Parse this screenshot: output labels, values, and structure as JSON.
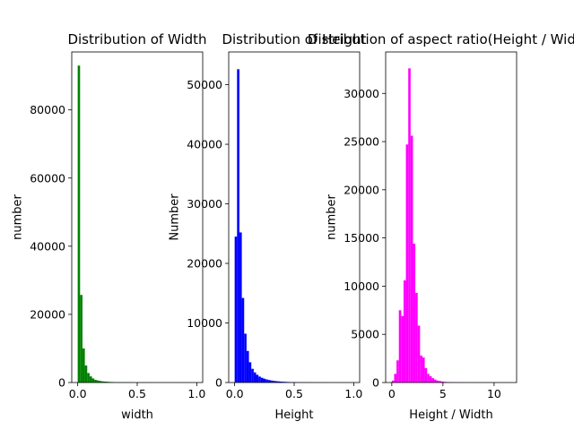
{
  "chart_data": [
    {
      "type": "bar",
      "title": "Distribution of Width",
      "xlabel": "width",
      "ylabel": "number",
      "color": "#008000",
      "xlim": [
        -0.05,
        1.05
      ],
      "ylim": [
        0,
        97000
      ],
      "xticks": [
        0.0,
        0.5,
        1.0
      ],
      "xtick_labels": [
        "0.0",
        "0.5",
        "1.0"
      ],
      "yticks": [
        0,
        20000,
        40000,
        60000,
        80000
      ],
      "ytick_labels": [
        "0",
        "20000",
        "40000",
        "60000",
        "80000"
      ],
      "bin_start": 0.0,
      "bin_width": 0.02,
      "values": [
        93000,
        25700,
        10000,
        5000,
        2800,
        1800,
        1200,
        800,
        600,
        450,
        350,
        280,
        220,
        180,
        150,
        120,
        100,
        80,
        70,
        60,
        55,
        50,
        45,
        40,
        35,
        30,
        28,
        25,
        22,
        20,
        18,
        16,
        15,
        14,
        13,
        12,
        11,
        10,
        9,
        8,
        7,
        6,
        5,
        5,
        4,
        4,
        3,
        3,
        2,
        2
      ]
    },
    {
      "type": "bar",
      "title": "Distribution of Height",
      "xlabel": "Height",
      "ylabel": "Number",
      "color": "#0000ff",
      "xlim": [
        -0.05,
        1.05
      ],
      "ylim": [
        0,
        55500
      ],
      "xticks": [
        0.0,
        0.5,
        1.0
      ],
      "xtick_labels": [
        "0.0",
        "0.5",
        "1.0"
      ],
      "yticks": [
        0,
        10000,
        20000,
        30000,
        40000,
        50000
      ],
      "ytick_labels": [
        "0",
        "10000",
        "20000",
        "30000",
        "40000",
        "50000"
      ],
      "bin_start": 0.0,
      "bin_width": 0.02,
      "values": [
        24500,
        52600,
        25200,
        14200,
        8200,
        5300,
        3400,
        2300,
        1700,
        1300,
        1000,
        800,
        650,
        520,
        420,
        340,
        280,
        230,
        190,
        160,
        130,
        110,
        90,
        75,
        60,
        50,
        42,
        35,
        30,
        25,
        21,
        18,
        15,
        13,
        11,
        9,
        8,
        7,
        6,
        5,
        4,
        4,
        3,
        3,
        2,
        2,
        2,
        1,
        1,
        1
      ]
    },
    {
      "type": "bar",
      "title": "Distribution of aspect ratio(Height / Width)",
      "xlabel": "Height / Width",
      "ylabel": "number",
      "color": "#ff00ff",
      "xlim": [
        -0.6,
        12.2
      ],
      "ylim": [
        0,
        34300
      ],
      "xticks": [
        0,
        5,
        10
      ],
      "xtick_labels": [
        "0",
        "5",
        "10"
      ],
      "yticks": [
        0,
        5000,
        10000,
        15000,
        20000,
        25000,
        30000
      ],
      "ytick_labels": [
        "0",
        "5000",
        "10000",
        "15000",
        "20000",
        "25000",
        "30000"
      ],
      "bin_start": 0.0,
      "bin_width": 0.23,
      "values": [
        200,
        900,
        2300,
        7500,
        6900,
        10600,
        24700,
        32600,
        25600,
        14400,
        9300,
        5900,
        2800,
        2600,
        1500,
        900,
        650,
        450,
        300,
        200,
        150,
        100,
        70,
        50,
        35,
        25,
        18,
        12,
        8,
        6,
        5,
        4,
        3,
        2,
        2,
        1,
        1,
        1,
        1,
        1,
        1,
        1,
        0,
        0,
        0,
        0,
        0,
        0,
        0,
        1
      ]
    }
  ]
}
